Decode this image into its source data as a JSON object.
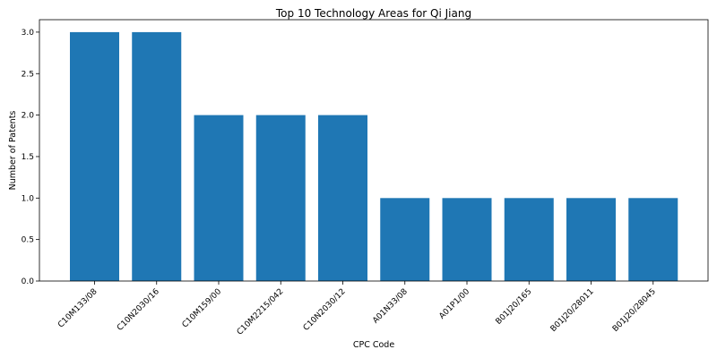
{
  "chart_data": {
    "type": "bar",
    "title": "Top 10 Technology Areas for Qi Jiang",
    "xlabel": "CPC Code",
    "ylabel": "Number of Patents",
    "categories": [
      "C10M133/08",
      "C10N2030/16",
      "C10M159/00",
      "C10M2215/042",
      "C10N2030/12",
      "A01N33/08",
      "A01P1/00",
      "B01J20/165",
      "B01J20/28011",
      "B01J20/28045"
    ],
    "values": [
      3,
      3,
      2,
      2,
      2,
      1,
      1,
      1,
      1,
      1
    ],
    "ylim": [
      0,
      3.15
    ],
    "yticks": [
      "0.0",
      "0.5",
      "1.0",
      "1.5",
      "2.0",
      "2.5",
      "3.0"
    ],
    "bar_color": "#1f77b4",
    "grid": false,
    "legend": "none"
  }
}
